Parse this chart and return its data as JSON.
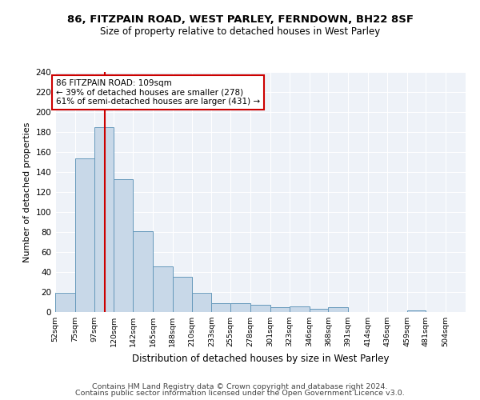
{
  "title1": "86, FITZPAIN ROAD, WEST PARLEY, FERNDOWN, BH22 8SF",
  "title2": "Size of property relative to detached houses in West Parley",
  "xlabel": "Distribution of detached houses by size in West Parley",
  "ylabel": "Number of detached properties",
  "bin_labels": [
    "52sqm",
    "75sqm",
    "97sqm",
    "120sqm",
    "142sqm",
    "165sqm",
    "188sqm",
    "210sqm",
    "233sqm",
    "255sqm",
    "278sqm",
    "301sqm",
    "323sqm",
    "346sqm",
    "368sqm",
    "391sqm",
    "414sqm",
    "436sqm",
    "459sqm",
    "481sqm",
    "504sqm"
  ],
  "bin_edges": [
    52,
    75,
    97,
    120,
    142,
    165,
    188,
    210,
    233,
    255,
    278,
    301,
    323,
    346,
    368,
    391,
    414,
    436,
    459,
    481,
    504
  ],
  "bar_heights": [
    19,
    154,
    185,
    133,
    81,
    46,
    35,
    19,
    9,
    9,
    7,
    5,
    6,
    3,
    5,
    0,
    0,
    0,
    2,
    0,
    0
  ],
  "bar_color": "#c8d8e8",
  "bar_edge_color": "#6699bb",
  "property_size": 109,
  "vline_color": "#cc0000",
  "annotation_line1": "86 FITZPAIN ROAD: 109sqm",
  "annotation_line2": "← 39% of detached houses are smaller (278)",
  "annotation_line3": "61% of semi-detached houses are larger (431) →",
  "annotation_box_color": "white",
  "annotation_box_edge_color": "#cc0000",
  "footer_line1": "Contains HM Land Registry data © Crown copyright and database right 2024.",
  "footer_line2": "Contains public sector information licensed under the Open Government Licence v3.0.",
  "ylim": [
    0,
    240
  ],
  "yticks": [
    0,
    20,
    40,
    60,
    80,
    100,
    120,
    140,
    160,
    180,
    200,
    220,
    240
  ],
  "background_color": "#eef2f8",
  "grid_color": "#ffffff",
  "fig_background": "#ffffff"
}
